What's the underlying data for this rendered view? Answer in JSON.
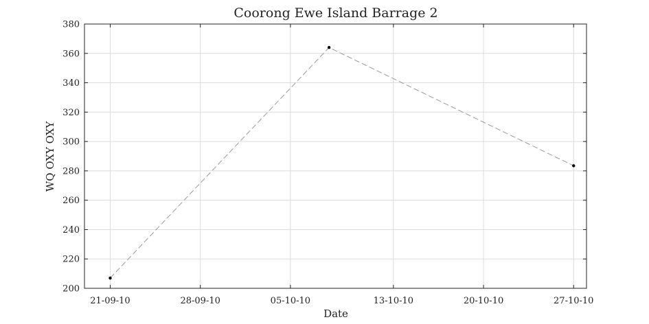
{
  "chart_data": {
    "type": "line",
    "title": "Coorong Ewe Island Barrage 2",
    "xlabel": "Date",
    "ylabel": "WQ OXY OXY",
    "x_tick_labels": [
      "21-09-10",
      "28-09-10",
      "05-10-10",
      "13-10-10",
      "20-10-10",
      "27-10-10"
    ],
    "y_ticks": [
      200,
      220,
      240,
      260,
      280,
      300,
      320,
      340,
      360,
      380
    ],
    "xlim": [
      "2010-09-19",
      "2010-10-28"
    ],
    "ylim": [
      200,
      380
    ],
    "grid": true,
    "legend": "none",
    "series": [
      {
        "x": [
          "2010-09-21",
          "2010-10-08",
          "2010-10-27"
        ],
        "y": [
          207,
          364,
          283.5
        ],
        "line_style": "dashed",
        "line_color": "#999999",
        "marker_color": "#000000"
      }
    ]
  }
}
